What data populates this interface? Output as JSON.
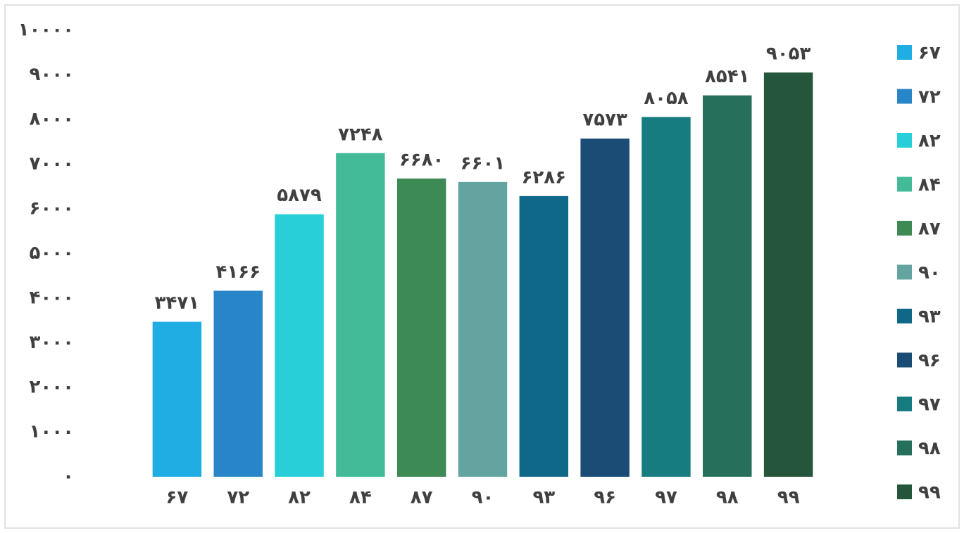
{
  "chart_data": {
    "type": "bar",
    "categories": [
      "۶۷",
      "۷۲",
      "۸۲",
      "۸۴",
      "۸۷",
      "۹۰",
      "۹۳",
      "۹۶",
      "۹۷",
      "۹۸",
      "۹۹"
    ],
    "values": [
      3471,
      4166,
      5879,
      7248,
      6680,
      6601,
      6286,
      7573,
      8058,
      8541,
      9053
    ],
    "value_labels": [
      "۳۴۷۱",
      "۴۱۶۶",
      "۵۸۷۹",
      "۷۲۴۸",
      "۶۶۸۰",
      "۶۶۰۱",
      "۶۲۸۶",
      "۷۵۷۳",
      "۸۰۵۸",
      "۸۵۴۱",
      "۹۰۵۳"
    ],
    "colors": [
      "#1fade3",
      "#2886c8",
      "#28cfd8",
      "#43bb98",
      "#3d8a55",
      "#63a4a0",
      "#106888",
      "#1a4c75",
      "#167c80",
      "#266f5b",
      "#25553a"
    ],
    "ylim": [
      0,
      10000
    ],
    "yticks": [
      {
        "value": 0,
        "label": "۰"
      },
      {
        "value": 1000,
        "label": "۱۰۰۰"
      },
      {
        "value": 2000,
        "label": "۲۰۰۰"
      },
      {
        "value": 3000,
        "label": "۳۰۰۰"
      },
      {
        "value": 4000,
        "label": "۴۰۰۰"
      },
      {
        "value": 5000,
        "label": "۵۰۰۰"
      },
      {
        "value": 6000,
        "label": "۶۰۰۰"
      },
      {
        "value": 7000,
        "label": "۷۰۰۰"
      },
      {
        "value": 8000,
        "label": "۸۰۰۰"
      },
      {
        "value": 9000,
        "label": "۹۰۰۰"
      },
      {
        "value": 10000,
        "label": "۱۰۰۰۰"
      }
    ],
    "legend": "right"
  }
}
